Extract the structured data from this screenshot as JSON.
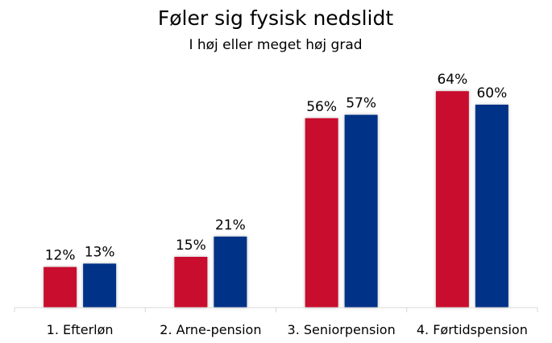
{
  "chart_data": {
    "type": "bar",
    "title": "Føler sig fysisk nedslidt",
    "subtitle": "I høj eller meget høj grad",
    "xlabel": "",
    "ylabel": "",
    "ylim": [
      0,
      70
    ],
    "grid": false,
    "categories": [
      "1. Efterløn",
      "2. Arne-pension",
      "3. Seniorpension",
      "4. Førtidspension"
    ],
    "series": [
      {
        "color": "#c8102e",
        "values": [
          12,
          15,
          56,
          64
        ],
        "labels": [
          "12%",
          "15%",
          "56%",
          "64%"
        ]
      },
      {
        "color": "#003087",
        "values": [
          13,
          21,
          57,
          60
        ],
        "labels": [
          "13%",
          "21%",
          "57%",
          "60%"
        ]
      }
    ]
  }
}
